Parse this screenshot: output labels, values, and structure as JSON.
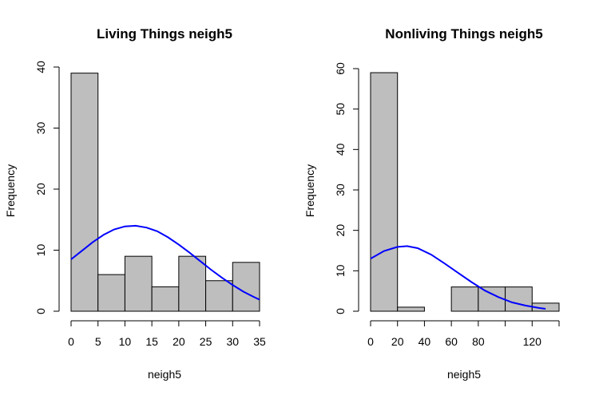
{
  "chart_data": [
    {
      "type": "bar",
      "title": "Living Things neigh5",
      "xlabel": "neigh5",
      "ylabel": "Frequency",
      "bins": [
        {
          "x0": 0,
          "x1": 5,
          "value": 39
        },
        {
          "x0": 5,
          "x1": 10,
          "value": 6
        },
        {
          "x0": 10,
          "x1": 15,
          "value": 9
        },
        {
          "x0": 15,
          "x1": 20,
          "value": 4
        },
        {
          "x0": 20,
          "x1": 25,
          "value": 9
        },
        {
          "x0": 25,
          "x1": 30,
          "value": 5
        },
        {
          "x0": 30,
          "x1": 35,
          "value": 8
        }
      ],
      "xlim": [
        0,
        35
      ],
      "ylim": [
        0,
        40
      ],
      "xticks": [
        0,
        5,
        10,
        15,
        20,
        25,
        30,
        35
      ],
      "yticks": [
        0,
        10,
        20,
        30,
        40
      ],
      "curve": {
        "color": "#0000ff",
        "x": [
          0,
          2,
          4,
          6,
          8,
          10,
          12,
          14,
          16,
          18,
          20,
          22,
          24,
          26,
          28,
          30,
          32,
          34,
          35
        ],
        "y": [
          8.5,
          9.9,
          11.3,
          12.5,
          13.4,
          13.9,
          14.0,
          13.7,
          13.1,
          12.1,
          10.9,
          9.6,
          8.2,
          6.8,
          5.5,
          4.3,
          3.2,
          2.3,
          1.9
        ]
      }
    },
    {
      "type": "bar",
      "title": "Nonliving Things neigh5",
      "xlabel": "neigh5",
      "ylabel": "Frequency",
      "bins": [
        {
          "x0": 0,
          "x1": 20,
          "value": 59
        },
        {
          "x0": 20,
          "x1": 40,
          "value": 1
        },
        {
          "x0": 40,
          "x1": 60,
          "value": 0
        },
        {
          "x0": 60,
          "x1": 80,
          "value": 6
        },
        {
          "x0": 80,
          "x1": 100,
          "value": 6
        },
        {
          "x0": 100,
          "x1": 120,
          "value": 6
        },
        {
          "x0": 120,
          "x1": 140,
          "value": 2
        }
      ],
      "xlim": [
        0,
        140
      ],
      "ylim": [
        0,
        60
      ],
      "xticks": [
        0,
        20,
        40,
        60,
        80,
        100,
        120,
        140
      ],
      "xtick_labels": [
        "0",
        "20",
        "40",
        "60",
        "80",
        "",
        "120",
        ""
      ],
      "yticks": [
        0,
        10,
        20,
        30,
        40,
        50,
        60
      ],
      "curve": {
        "color": "#0000ff",
        "x": [
          0,
          10,
          20,
          27,
          35,
          45,
          55,
          65,
          75,
          85,
          95,
          105,
          115,
          125,
          130
        ],
        "y": [
          13,
          14.9,
          15.9,
          16.1,
          15.6,
          14.0,
          11.8,
          9.5,
          7.2,
          5.1,
          3.5,
          2.2,
          1.4,
          0.8,
          0.6
        ]
      }
    }
  ]
}
